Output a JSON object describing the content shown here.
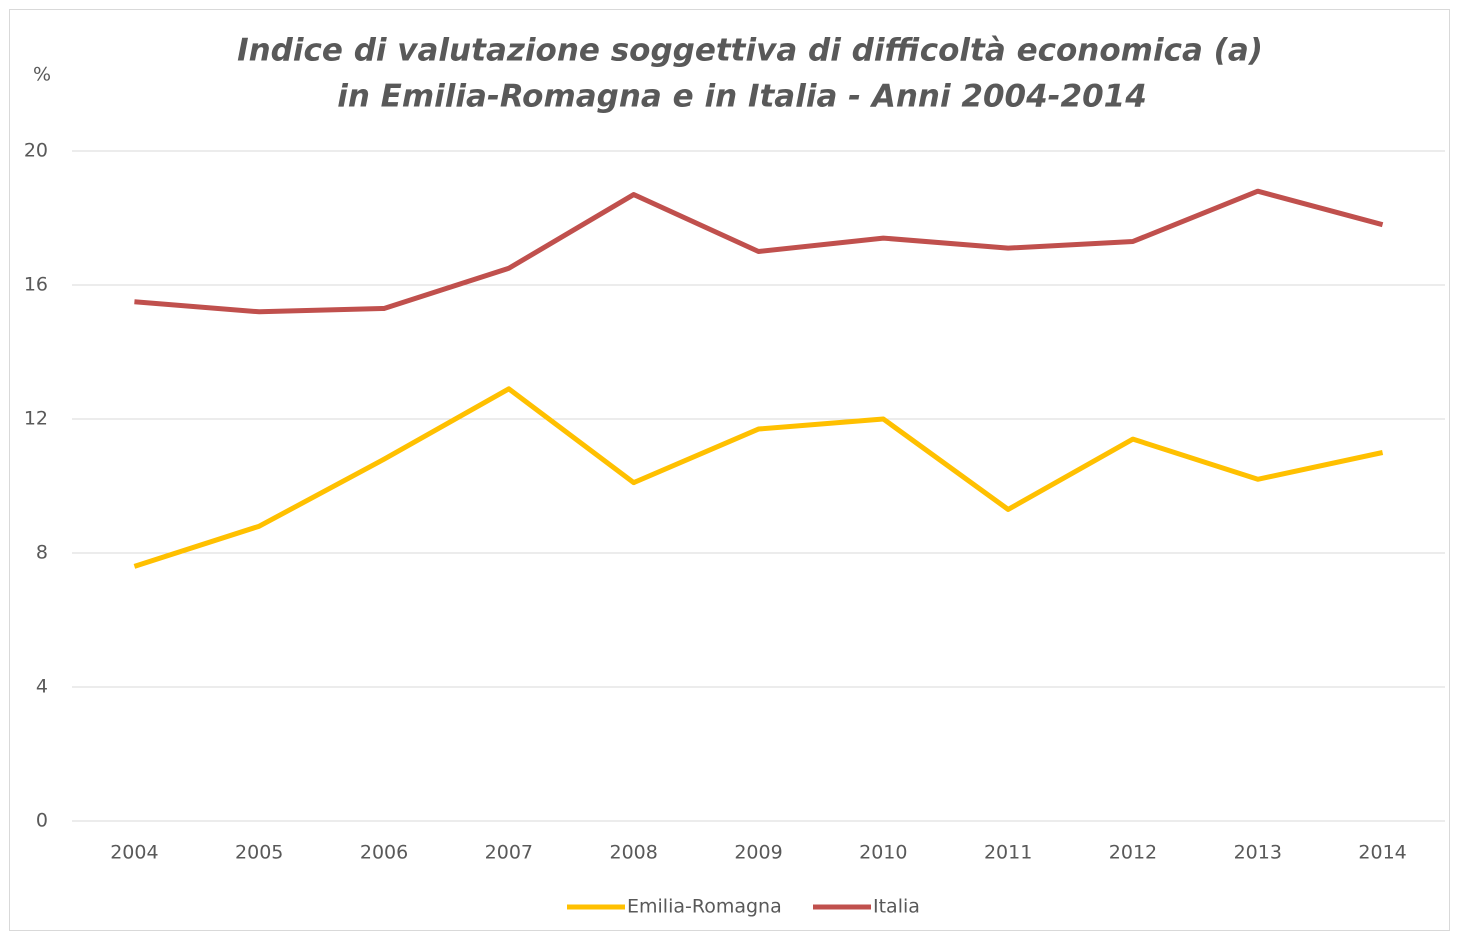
{
  "chart_data": {
    "type": "line",
    "title": [
      "Indice di valutazione soggettiva di difficoltà economica (a)",
      "in Emilia-Romagna e in Italia - Anni 2004-2014"
    ],
    "y_label": "%",
    "categories": [
      "2004",
      "2005",
      "2006",
      "2007",
      "2008",
      "2009",
      "2010",
      "2011",
      "2012",
      "2013",
      "2014"
    ],
    "series": [
      {
        "name": "Emilia-Romagna",
        "color": "#ffc000",
        "values": [
          7.6,
          8.8,
          10.8,
          12.9,
          10.1,
          11.7,
          12.0,
          9.3,
          11.4,
          10.2,
          11.0
        ]
      },
      {
        "name": "Italia",
        "color": "#c0504d",
        "values": [
          15.5,
          15.2,
          15.3,
          16.5,
          18.7,
          17.0,
          17.4,
          17.1,
          17.3,
          18.8,
          17.8
        ]
      }
    ],
    "ylim": [
      0,
      20
    ],
    "yticks": [
      0,
      4,
      8,
      12,
      16,
      20
    ],
    "grid": true,
    "legend": "bottom"
  }
}
